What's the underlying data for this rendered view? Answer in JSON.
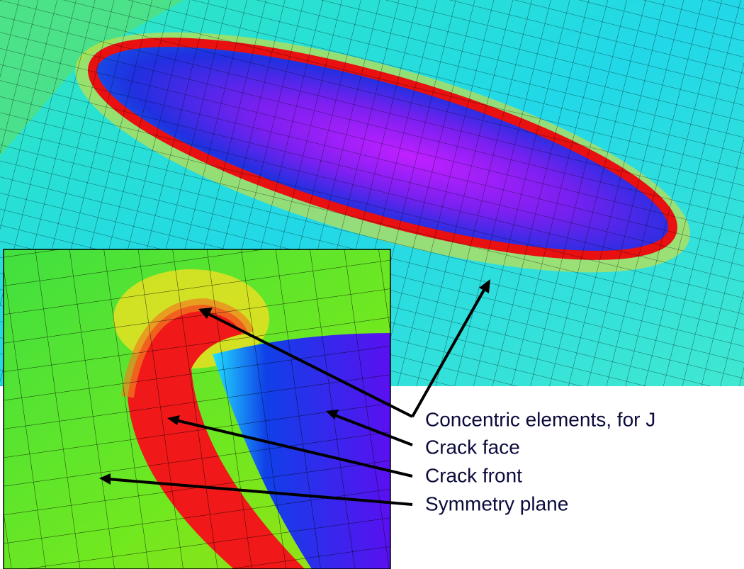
{
  "labels": [
    "Concentric elements, for J",
    "Crack face",
    "Crack front",
    "Symmetry plane"
  ]
}
